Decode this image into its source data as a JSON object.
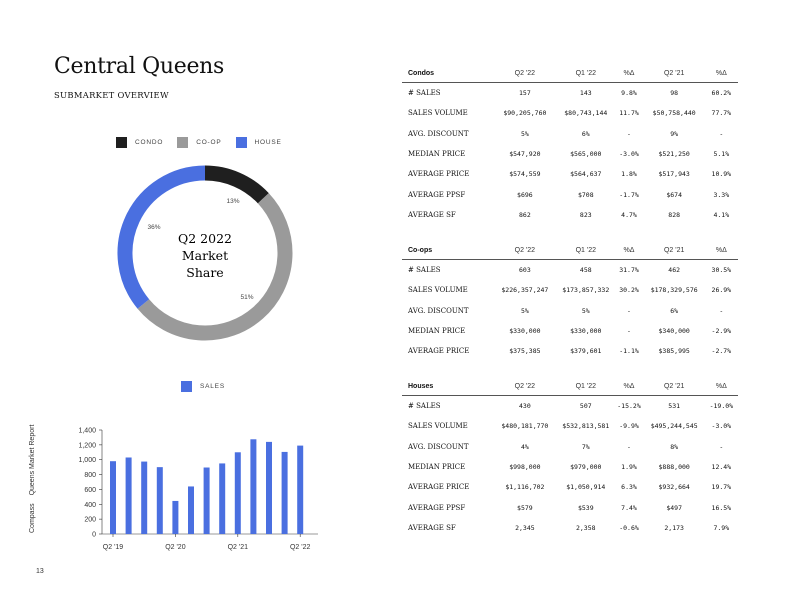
{
  "page": {
    "title": "Central Queens",
    "subtitle": "SUBMARKET OVERVIEW",
    "side_label_brand": "Compass",
    "side_label_report": "Queens Market Report",
    "page_number": "13"
  },
  "colors": {
    "condo": "#1f1f1f",
    "coop": "#9a9a9a",
    "house": "#4a6fe0",
    "sales": "#4a6fe0"
  },
  "chart_data": [
    {
      "type": "pie",
      "title": "Q2 2022 Market Share",
      "center_lines": [
        "Q2 2022",
        "Market",
        "Share"
      ],
      "legend": [
        "CONDO",
        "CO-OP",
        "HOUSE"
      ],
      "slices": [
        {
          "name": "CONDO",
          "value": 13,
          "label": "13%"
        },
        {
          "name": "CO-OP",
          "value": 51,
          "label": "51%"
        },
        {
          "name": "HOUSE",
          "value": 36,
          "label": "36%"
        }
      ]
    },
    {
      "type": "bar",
      "legend": [
        "SALES"
      ],
      "series": [
        {
          "name": "SALES",
          "values": [
            980,
            1030,
            975,
            900,
            445,
            640,
            895,
            950,
            1100,
            1275,
            1240,
            1105,
            1190
          ]
        }
      ],
      "x_tick_labels": [
        "Q2 '19",
        "Q2 '20",
        "Q2 '21",
        "Q2 '22"
      ],
      "x_tick_indices": [
        0,
        4,
        8,
        12
      ],
      "y_ticks": [
        "0",
        "200",
        "400",
        "600",
        "800",
        "1,000",
        "1,200",
        "1,400"
      ],
      "ylim": [
        0,
        1400
      ]
    }
  ],
  "tables": [
    {
      "name": "Condos",
      "columns": [
        "Q2 '22",
        "Q1 '22",
        "%Δ",
        "Q2 '21",
        "%Δ"
      ],
      "rows": [
        {
          "label": "# SALES",
          "cells": [
            "157",
            "143",
            "9.8%",
            "98",
            "60.2%"
          ]
        },
        {
          "label": "SALES VOLUME",
          "cells": [
            "$90,205,760",
            "$80,743,144",
            "11.7%",
            "$50,758,440",
            "77.7%"
          ]
        },
        {
          "label": "AVG. DISCOUNT",
          "cells": [
            "5%",
            "6%",
            "-",
            "9%",
            "-"
          ]
        },
        {
          "label": "MEDIAN PRICE",
          "cells": [
            "$547,920",
            "$565,000",
            "-3.0%",
            "$521,250",
            "5.1%"
          ]
        },
        {
          "label": "AVERAGE PRICE",
          "cells": [
            "$574,559",
            "$564,637",
            "1.8%",
            "$517,943",
            "10.9%"
          ]
        },
        {
          "label": "AVERAGE PPSF",
          "cells": [
            "$696",
            "$708",
            "-1.7%",
            "$674",
            "3.3%"
          ]
        },
        {
          "label": "AVERAGE SF",
          "cells": [
            "862",
            "823",
            "4.7%",
            "828",
            "4.1%"
          ]
        }
      ]
    },
    {
      "name": "Co-ops",
      "columns": [
        "Q2 '22",
        "Q1 '22",
        "%Δ",
        "Q2 '21",
        "%Δ"
      ],
      "rows": [
        {
          "label": "# SALES",
          "cells": [
            "603",
            "458",
            "31.7%",
            "462",
            "30.5%"
          ]
        },
        {
          "label": "SALES VOLUME",
          "cells": [
            "$226,357,247",
            "$173,857,332",
            "30.2%",
            "$178,329,576",
            "26.9%"
          ]
        },
        {
          "label": "AVG. DISCOUNT",
          "cells": [
            "5%",
            "5%",
            "-",
            "6%",
            "-"
          ]
        },
        {
          "label": "MEDIAN PRICE",
          "cells": [
            "$330,000",
            "$330,000",
            "-",
            "$340,000",
            "-2.9%"
          ]
        },
        {
          "label": "AVERAGE PRICE",
          "cells": [
            "$375,385",
            "$379,601",
            "-1.1%",
            "$385,995",
            "-2.7%"
          ]
        }
      ]
    },
    {
      "name": "Houses",
      "columns": [
        "Q2 '22",
        "Q1 '22",
        "%Δ",
        "Q2 '21",
        "%Δ"
      ],
      "rows": [
        {
          "label": "# SALES",
          "cells": [
            "430",
            "507",
            "-15.2%",
            "531",
            "-19.0%"
          ]
        },
        {
          "label": "SALES VOLUME",
          "cells": [
            "$480,181,770",
            "$532,813,581",
            "-9.9%",
            "$495,244,545",
            "-3.0%"
          ]
        },
        {
          "label": "AVG. DISCOUNT",
          "cells": [
            "4%",
            "7%",
            "-",
            "8%",
            "-"
          ]
        },
        {
          "label": "MEDIAN PRICE",
          "cells": [
            "$998,000",
            "$979,000",
            "1.9%",
            "$888,000",
            "12.4%"
          ]
        },
        {
          "label": "AVERAGE PRICE",
          "cells": [
            "$1,116,702",
            "$1,050,914",
            "6.3%",
            "$932,664",
            "19.7%"
          ]
        },
        {
          "label": "AVERAGE PPSF",
          "cells": [
            "$579",
            "$539",
            "7.4%",
            "$497",
            "16.5%"
          ]
        },
        {
          "label": "AVERAGE SF",
          "cells": [
            "2,345",
            "2,358",
            "-0.6%",
            "2,173",
            "7.9%"
          ]
        }
      ]
    }
  ]
}
